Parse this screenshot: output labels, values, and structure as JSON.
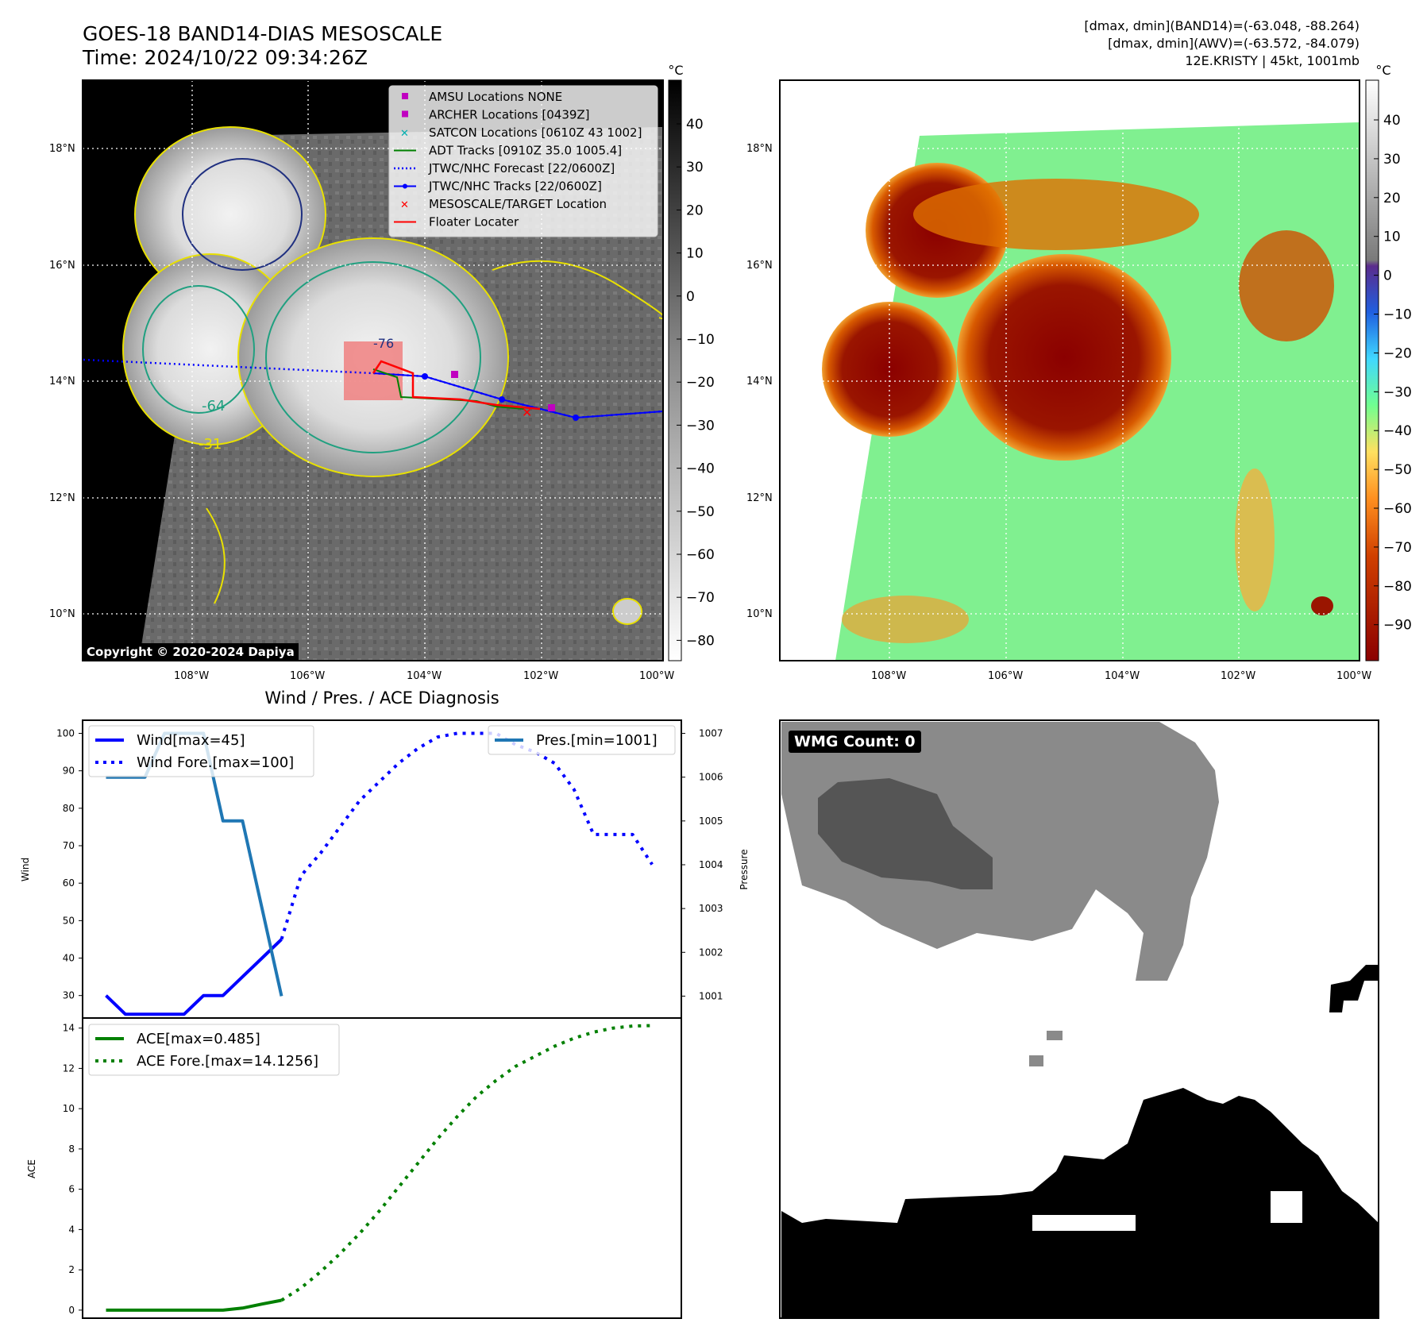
{
  "header": {
    "title": "GOES-18 BAND14-DIAS MESOSCALE",
    "time": "Time: 2024/10/22 09:34:26Z",
    "stats_band14": "[dmax, dmin](BAND14)=(-63.048, -88.264)",
    "stats_awv": "[dmax, dmin](AWV)=(-63.572, -84.079)",
    "storm": "12E.KRISTY | 45kt, 1001mb"
  },
  "map": {
    "lat_labels": [
      "18°N",
      "16°N",
      "14°N",
      "12°N",
      "10°N"
    ],
    "lon_labels": [
      "108°W",
      "106°W",
      "104°W",
      "102°W",
      "100°W"
    ],
    "contour_labels": [
      "-64",
      "-31",
      "-76"
    ],
    "copyright": "Copyright © 2020-2024 Dapiya",
    "legend": [
      {
        "label": "AMSU Locations NONE",
        "color": "#c000c0"
      },
      {
        "label": "ARCHER Locations [0439Z]",
        "color": "#c000c0"
      },
      {
        "label": "SATCON Locations [0610Z 43 1002]",
        "color": "#00b0b0"
      },
      {
        "label": "ADT Tracks [0910Z 35.0 1005.4]",
        "color": "#008000"
      },
      {
        "label": "JTWC/NHC Forecast [22/0600Z]",
        "color": "#0000ff"
      },
      {
        "label": "JTWC/NHC Tracks [22/0600Z]",
        "color": "#0000ff"
      },
      {
        "label": "MESOSCALE/TARGET Location",
        "color": "#ff0000"
      },
      {
        "label": "Floater Locater",
        "color": "#ff0000"
      }
    ],
    "colorbar_left": {
      "unit": "°C",
      "ticks": [
        "40",
        "30",
        "20",
        "10",
        "0",
        "−10",
        "−20",
        "−30",
        "−40",
        "−50",
        "−60",
        "−70",
        "−80"
      ]
    },
    "colorbar_right": {
      "unit": "°C",
      "ticks": [
        "40",
        "30",
        "20",
        "10",
        "0",
        "−10",
        "−20",
        "−30",
        "−40",
        "−50",
        "−60",
        "−70",
        "−80",
        "−90"
      ]
    }
  },
  "chart_data": [
    {
      "type": "line",
      "title": "Wind / Pres. / ACE Diagnosis",
      "ylabel": "Wind",
      "ylabel_right": "Pressure",
      "ylim": [
        24,
        103.5
      ],
      "ylim_right": [
        1000.5,
        1007.3
      ],
      "yticks": [
        30,
        40,
        50,
        60,
        70,
        80,
        90,
        100
      ],
      "yticks_right": [
        1001,
        1002,
        1003,
        1004,
        1005,
        1006,
        1007
      ],
      "x": [
        0,
        1,
        2,
        3,
        4,
        5,
        6,
        7,
        8,
        9,
        10,
        11,
        12,
        13,
        14,
        15,
        16,
        17,
        18,
        19,
        20,
        21,
        22,
        23,
        24,
        25,
        26,
        27,
        28
      ],
      "xlim": [
        -1.2,
        29.5
      ],
      "series": [
        {
          "name": "Wind",
          "legend": "Wind[max=45]",
          "color": "#0000ff",
          "style": "solid",
          "x": [
            0,
            1,
            2,
            3,
            4,
            5,
            6,
            7,
            8,
            9
          ],
          "values": [
            30,
            25,
            25,
            25,
            25,
            30,
            30,
            35,
            40,
            45
          ]
        },
        {
          "name": "Wind Fore",
          "legend": "Wind Fore.[max=100]",
          "color": "#0000ff",
          "style": "dotted",
          "x": [
            9,
            10,
            11,
            12,
            13,
            14,
            15,
            16,
            17,
            18,
            19,
            20,
            21,
            22,
            23,
            24,
            25,
            26,
            27,
            28
          ],
          "values": [
            45,
            62,
            68,
            75,
            82,
            87,
            92,
            96,
            99,
            100,
            100,
            100,
            97,
            95,
            92,
            85,
            73,
            73,
            73,
            65
          ]
        },
        {
          "name": "Pres",
          "legend": "Pres.[min=1001]",
          "color": "#1f77b4",
          "style": "solid",
          "axis": "right",
          "x": [
            0,
            1,
            2,
            3,
            4,
            5,
            6,
            7,
            8,
            9
          ],
          "values": [
            1006,
            1006,
            1006,
            1007,
            1007,
            1007,
            1005,
            1005,
            1003,
            1001
          ]
        }
      ]
    },
    {
      "type": "line",
      "ylabel": "ACE",
      "ylim": [
        -0.4,
        14.5
      ],
      "yticks": [
        0,
        2,
        4,
        6,
        8,
        10,
        12,
        14
      ],
      "xlim": [
        -1.2,
        29.5
      ],
      "series": [
        {
          "name": "ACE",
          "legend": "ACE[max=0.485]",
          "color": "#008000",
          "style": "solid",
          "x": [
            0,
            1,
            2,
            3,
            4,
            5,
            6,
            7,
            8,
            9
          ],
          "values": [
            0,
            0,
            0,
            0,
            0,
            0,
            0,
            0.1,
            0.3,
            0.485
          ]
        },
        {
          "name": "ACE Fore",
          "legend": "ACE Fore.[max=14.1256]",
          "color": "#008000",
          "style": "dotted",
          "x": [
            9,
            10,
            11,
            12,
            13,
            14,
            15,
            16,
            17,
            18,
            19,
            20,
            21,
            22,
            23,
            24,
            25,
            26,
            27,
            28
          ],
          "values": [
            0.485,
            1.1,
            1.9,
            2.8,
            3.8,
            4.9,
            6.1,
            7.3,
            8.5,
            9.6,
            10.6,
            11.4,
            12.1,
            12.6,
            13.1,
            13.5,
            13.8,
            14.0,
            14.1,
            14.1256
          ]
        }
      ]
    }
  ],
  "wmg": {
    "label": "WMG Count: 0"
  }
}
